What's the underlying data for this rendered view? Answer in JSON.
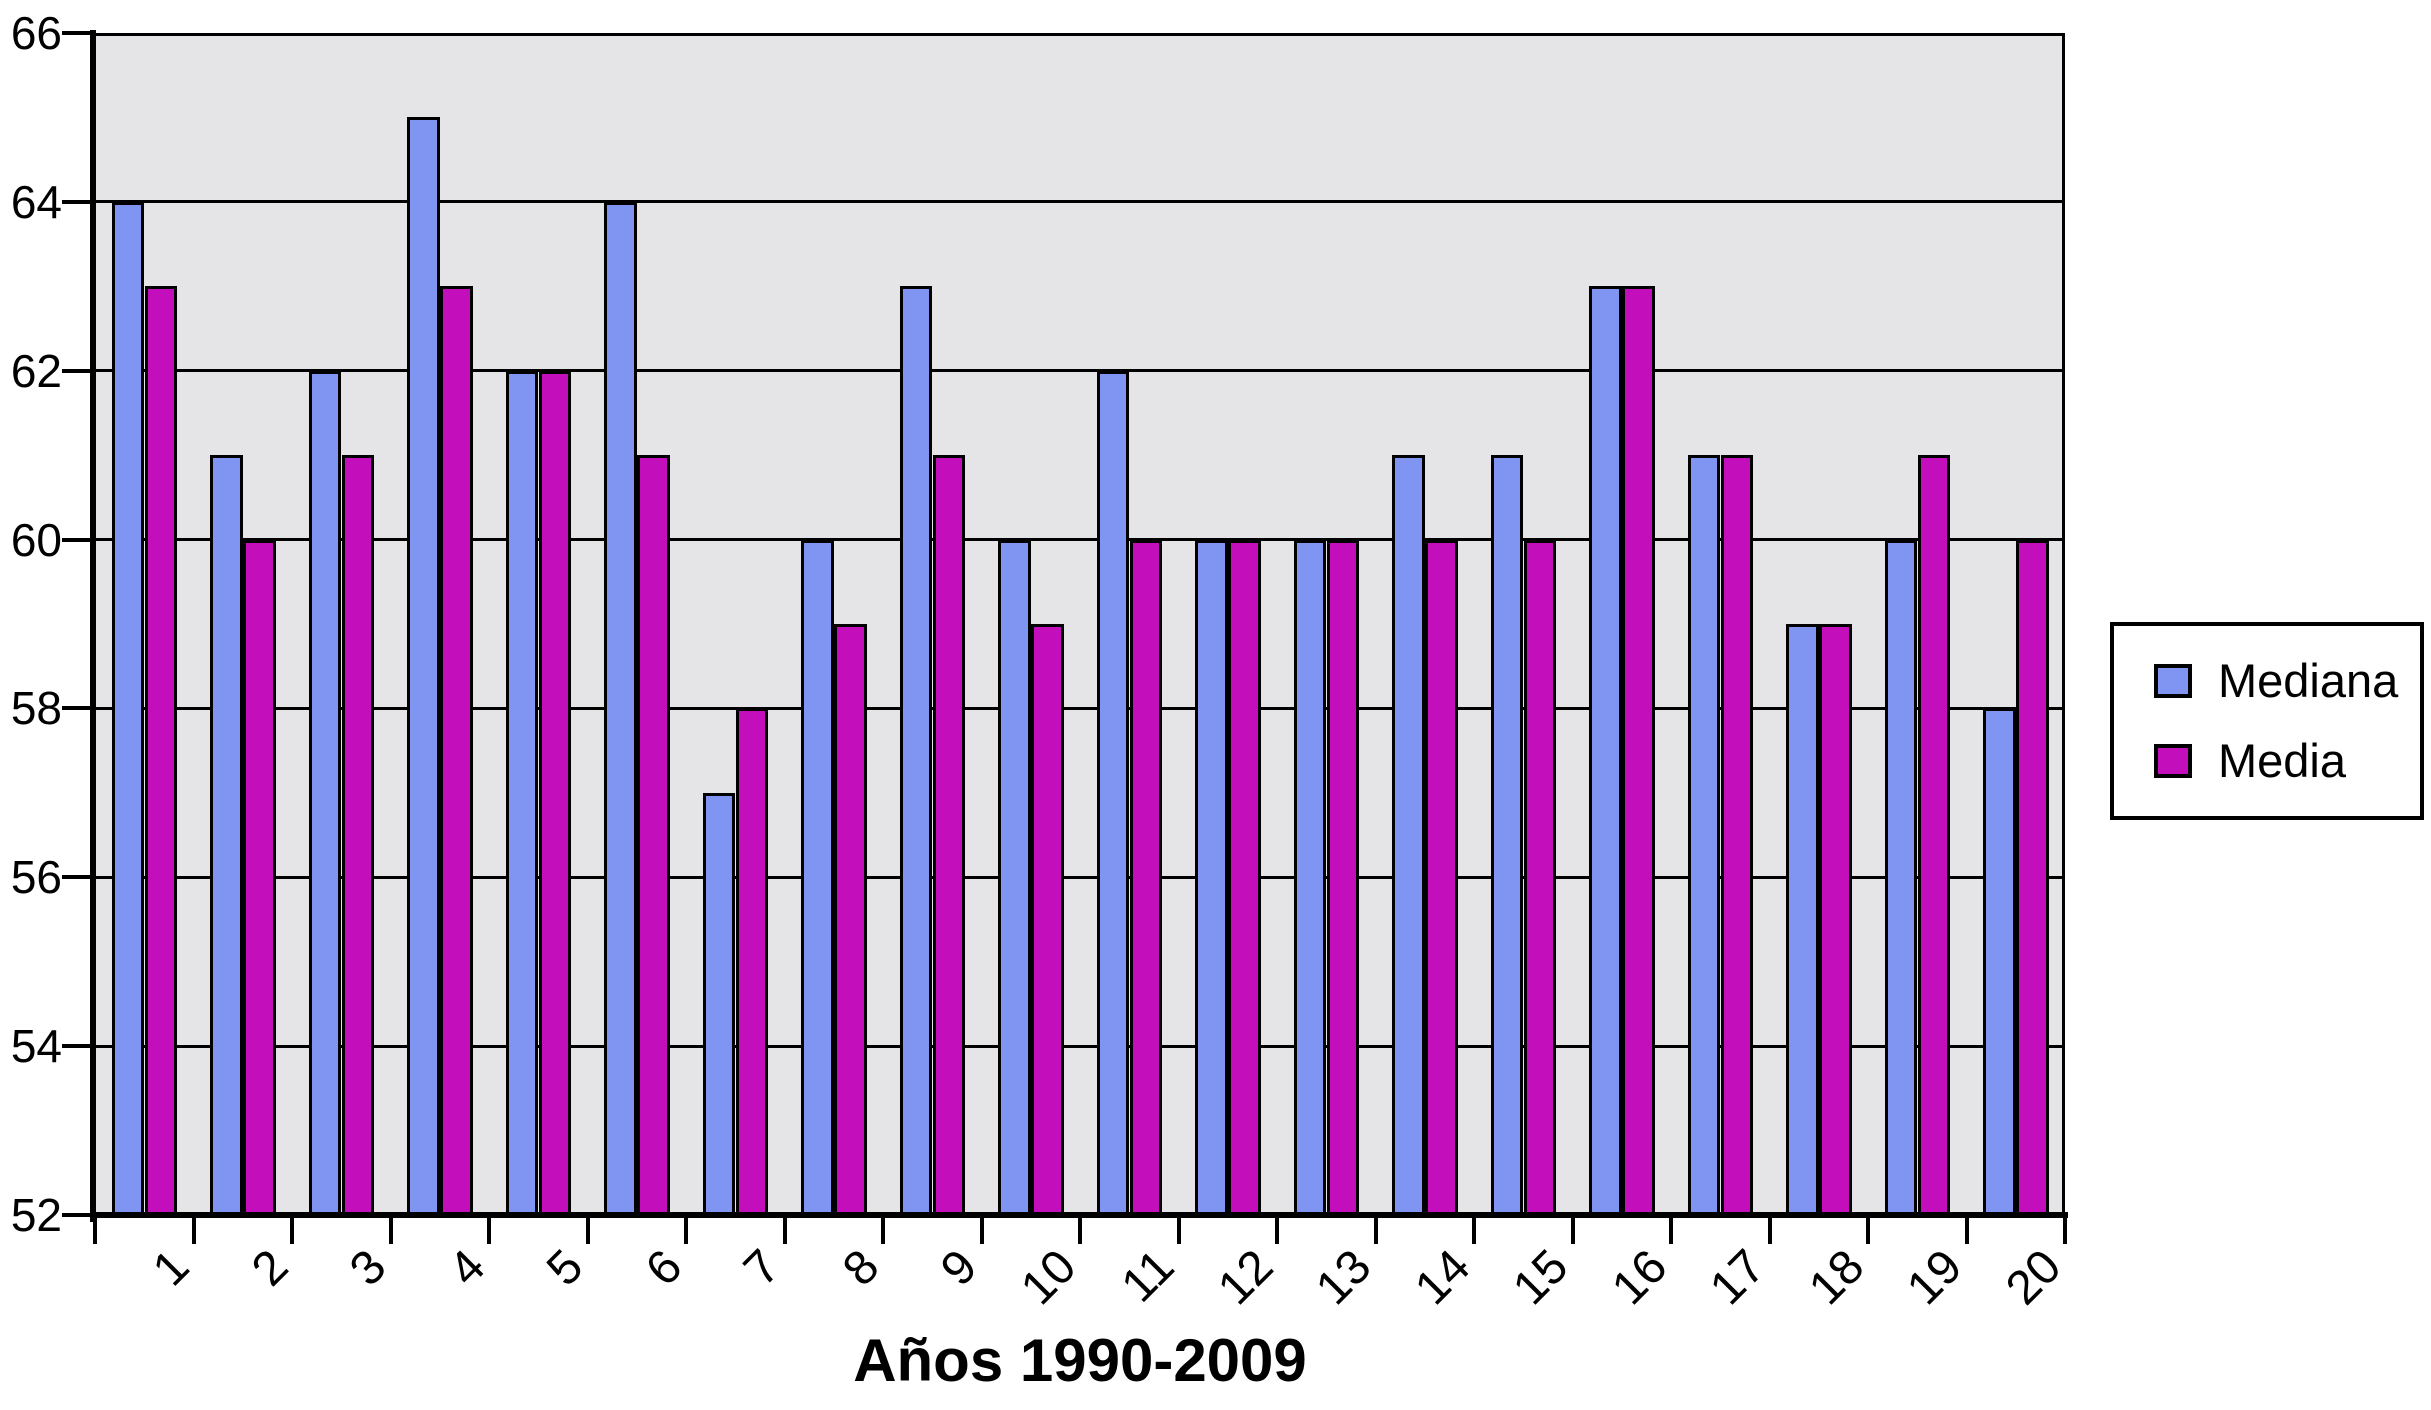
{
  "page": {
    "background": "#FFFFFF"
  },
  "chart_data": {
    "type": "bar",
    "title": "",
    "xlabel": "Años 1990-2009",
    "ylabel": "",
    "categories": [
      "1",
      "2",
      "3",
      "4",
      "5",
      "6",
      "7",
      "8",
      "9",
      "10",
      "11",
      "12",
      "13",
      "14",
      "15",
      "16",
      "17",
      "18",
      "19",
      "20"
    ],
    "series": [
      {
        "name": "Mediana",
        "color": "#8094F2",
        "values": [
          64,
          61,
          62,
          65,
          62,
          64,
          57,
          60,
          63,
          60,
          62,
          60,
          60,
          61,
          61,
          63,
          61,
          59,
          60,
          58
        ]
      },
      {
        "name": "Media",
        "color": "#C30EBC",
        "values": [
          63,
          60,
          61,
          63,
          62,
          61,
          58,
          59,
          61,
          59,
          60,
          60,
          60,
          60,
          60,
          63,
          61,
          59,
          61,
          60
        ]
      }
    ],
    "ylim": [
      52,
      66
    ],
    "yticks": [
      66,
      64,
      62,
      60,
      58,
      56,
      54,
      52
    ],
    "grid": true,
    "legend_position": "right",
    "plot_bg_color": "#E5E4E7",
    "gridline_color": "#000000",
    "axis_color": "#000000",
    "bar_border_color": "#000000"
  },
  "legend": {
    "items": [
      {
        "label": "Mediana",
        "color": "#8094F2"
      },
      {
        "label": "Media",
        "color": "#C30EBC"
      }
    ]
  }
}
